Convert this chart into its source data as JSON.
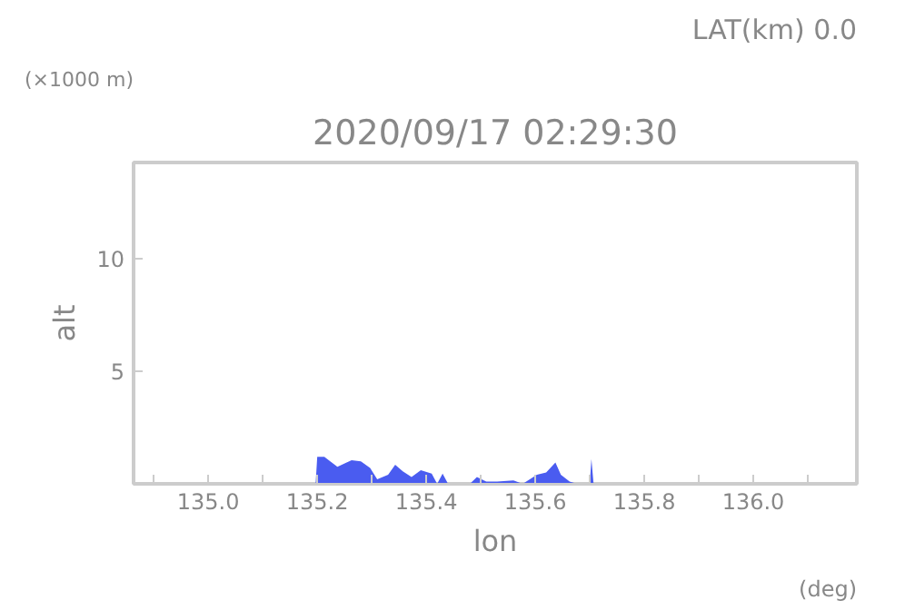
{
  "chart_data": {
    "type": "area",
    "title": "2020/09/17 02:29:30",
    "xlabel": "lon",
    "ylabel": "alt",
    "annotations": [
      "LAT(km) 0.0",
      "(×1000 m)",
      "(deg)"
    ],
    "x": [
      135.197,
      135.2,
      135.213,
      135.237,
      135.263,
      135.28,
      135.297,
      135.31,
      135.33,
      135.343,
      135.357,
      135.373,
      135.39,
      135.41,
      135.42,
      135.43,
      135.44,
      135.48,
      135.493,
      135.51,
      135.53,
      135.56,
      135.577,
      135.603,
      135.62,
      135.637,
      135.647,
      135.663,
      135.677,
      135.7,
      135.703,
      135.707
    ],
    "series": [
      {
        "color": "#4a5cf0",
        "values": [
          0,
          1.2,
          1.2,
          0.75,
          1.05,
          1.0,
          0.7,
          0.2,
          0.4,
          0.85,
          0.55,
          0.3,
          0.6,
          0.45,
          0,
          0.45,
          0,
          0,
          0.3,
          0.1,
          0.1,
          0.15,
          0,
          0.4,
          0.5,
          0.95,
          0.4,
          0.1,
          0,
          0,
          1.1,
          0
        ]
      }
    ],
    "xlim": [
      134.863,
      136.19
    ],
    "ylim": [
      0,
      14.25
    ],
    "xticks": [
      {
        "value": 134.9,
        "label": null
      },
      {
        "value": 135.0,
        "label": "135.0"
      },
      {
        "value": 135.1,
        "label": null
      },
      {
        "value": 135.2,
        "label": "135.2"
      },
      {
        "value": 135.3,
        "label": null
      },
      {
        "value": 135.4,
        "label": "135.4"
      },
      {
        "value": 135.5,
        "label": null
      },
      {
        "value": 135.6,
        "label": "135.6"
      },
      {
        "value": 135.7,
        "label": null
      },
      {
        "value": 135.8,
        "label": "135.8"
      },
      {
        "value": 135.9,
        "label": null
      },
      {
        "value": 136.0,
        "label": "136.0"
      },
      {
        "value": 136.1,
        "label": null
      }
    ],
    "yticks": [
      5,
      10
    ],
    "grid": false
  }
}
